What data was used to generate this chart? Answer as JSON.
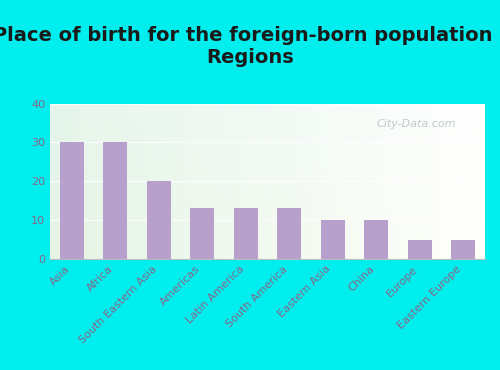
{
  "title": "Place of birth for the foreign-born population -\nRegions",
  "categories": [
    "Asia",
    "Africa",
    "South Eastern Asia",
    "Americas",
    "Latin America",
    "South America",
    "Eastern Asia",
    "China",
    "Europe",
    "Eastern Europe"
  ],
  "values": [
    30,
    30,
    20,
    13,
    13,
    13,
    10,
    10,
    5,
    5
  ],
  "bar_color": "#b8a0cc",
  "ylim": [
    0,
    40
  ],
  "yticks": [
    0,
    10,
    20,
    30,
    40
  ],
  "outer_bg": "#00eeee",
  "title_fontsize": 14,
  "title_color": "#1a1a1a",
  "tick_fontsize": 8,
  "ytick_color": "#886688",
  "xtick_color": "#886688",
  "watermark": "City-Data.com"
}
